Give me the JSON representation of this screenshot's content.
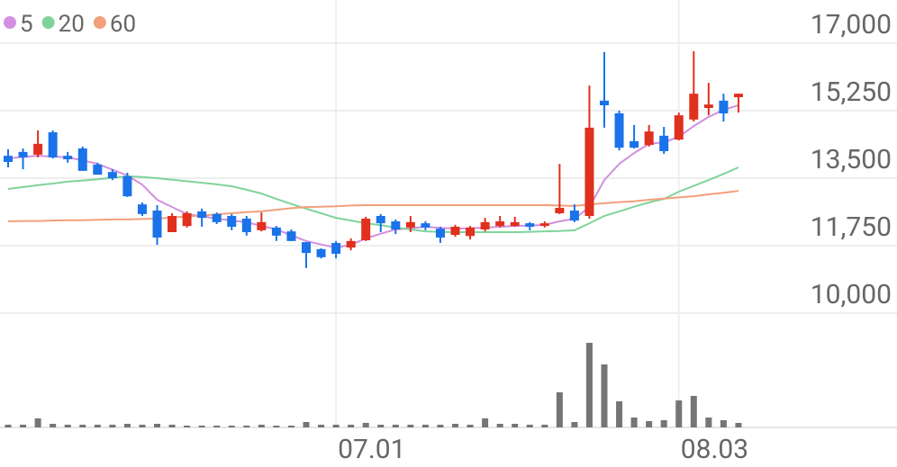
{
  "chart_data": {
    "type": "candlestick",
    "categories": [
      null,
      null,
      null,
      null,
      null,
      null,
      null,
      null,
      null,
      null,
      null,
      null,
      null,
      null,
      null,
      null,
      null,
      null,
      null,
      null,
      null,
      null,
      "07.01",
      null,
      null,
      null,
      null,
      null,
      null,
      null,
      null,
      null,
      null,
      null,
      null,
      null,
      null,
      null,
      null,
      null,
      null,
      null,
      null,
      null,
      null,
      "08.03",
      null,
      null,
      null,
      null
    ],
    "open": [
      14080,
      14180,
      14110,
      14690,
      14080,
      14270,
      13850,
      13660,
      13550,
      12820,
      12660,
      12100,
      12260,
      12640,
      12570,
      12520,
      12450,
      12150,
      12220,
      12120,
      11840,
      11660,
      11820,
      11700,
      11890,
      12520,
      12380,
      12220,
      12330,
      12190,
      12030,
      12000,
      12170,
      12260,
      12260,
      12330,
      12260,
      12590,
      12660,
      12520,
      15510,
      15180,
      14460,
      14360,
      14600,
      14500,
      15020,
      15320,
      15510,
      15600
    ],
    "high": [
      14250,
      14270,
      14740,
      14740,
      14180,
      14320,
      13900,
      13730,
      13640,
      12870,
      12800,
      12590,
      12640,
      12710,
      12610,
      12570,
      12520,
      12610,
      12260,
      12170,
      11840,
      11680,
      11870,
      11940,
      12500,
      12570,
      12430,
      12520,
      12380,
      12240,
      12290,
      12260,
      12470,
      12520,
      12500,
      12360,
      12380,
      13870,
      12820,
      15900,
      16770,
      15250,
      14880,
      14880,
      14830,
      15200,
      16790,
      15970,
      15690,
      15690
    ],
    "low": [
      13780,
      13730,
      14040,
      14010,
      13900,
      13690,
      13590,
      13450,
      13010,
      12520,
      11770,
      12100,
      12220,
      12240,
      12310,
      12150,
      12010,
      12120,
      11870,
      11870,
      11170,
      11420,
      11420,
      11630,
      11870,
      12100,
      12050,
      12100,
      12150,
      11820,
      11980,
      11910,
      12120,
      12220,
      12240,
      12150,
      12220,
      12570,
      12360,
      12450,
      14810,
      14220,
      14270,
      14320,
      14130,
      14480,
      14970,
      15130,
      14970,
      15200
    ],
    "close": [
      13920,
      14040,
      14390,
      14040,
      13990,
      13690,
      13590,
      13500,
      13030,
      12570,
      11960,
      12520,
      12590,
      12470,
      12360,
      12240,
      12100,
      12360,
      12010,
      11870,
      11560,
      11450,
      11540,
      11870,
      12450,
      12330,
      12170,
      12360,
      12220,
      11960,
      12240,
      12220,
      12360,
      12380,
      12360,
      12240,
      12330,
      12730,
      12400,
      14810,
      15390,
      14290,
      14290,
      14710,
      14200,
      15130,
      15690,
      15410,
      15180,
      15690
    ],
    "volume": [
      3000,
      3000,
      10000,
      4000,
      3000,
      3000,
      3000,
      3000,
      4000,
      3000,
      4000,
      3000,
      2000,
      2000,
      2000,
      2000,
      2000,
      3000,
      2000,
      2000,
      6000,
      3000,
      3000,
      3000,
      5000,
      3000,
      3000,
      3000,
      3000,
      3000,
      4000,
      3000,
      10000,
      4000,
      4000,
      3000,
      3000,
      39000,
      6000,
      94000,
      70000,
      29000,
      11000,
      7000,
      8000,
      30000,
      35000,
      11000,
      8000,
      5000
    ],
    "up_color": "#e0301e",
    "down_color": "#1a73e8",
    "volume_color": "#757575",
    "moving_averages": [
      {
        "name": "5",
        "color": "#d38fe0",
        "values": [
          14010,
          14050,
          14080,
          14060,
          14040,
          13960,
          13870,
          13720,
          13570,
          13330,
          12940,
          12750,
          12570,
          12510,
          12450,
          12400,
          12360,
          12260,
          12170,
          12020,
          11870,
          11780,
          11700,
          11770,
          11940,
          12060,
          12170,
          12200,
          12240,
          12210,
          12190,
          12200,
          12220,
          12240,
          12260,
          12270,
          12290,
          12380,
          12450,
          12750,
          13450,
          13870,
          14150,
          14390,
          14430,
          14570,
          14850,
          15090,
          15270,
          15390
        ]
      },
      {
        "name": "20",
        "color": "#7fd39a",
        "values": [
          13220,
          13270,
          13320,
          13360,
          13410,
          13440,
          13470,
          13510,
          13550,
          13530,
          13500,
          13460,
          13420,
          13380,
          13340,
          13290,
          13200,
          13100,
          12960,
          12830,
          12710,
          12590,
          12470,
          12400,
          12330,
          12280,
          12220,
          12170,
          12120,
          12110,
          12100,
          12100,
          12100,
          12100,
          12100,
          12110,
          12120,
          12130,
          12150,
          12330,
          12520,
          12640,
          12760,
          12870,
          12960,
          13150,
          13300,
          13450,
          13610,
          13780
        ]
      },
      {
        "name": "60",
        "color": "#f2a07c",
        "values": [
          12380,
          12390,
          12390,
          12400,
          12410,
          12410,
          12420,
          12430,
          12430,
          12440,
          12450,
          12480,
          12510,
          12530,
          12560,
          12590,
          12620,
          12640,
          12680,
          12720,
          12750,
          12760,
          12770,
          12790,
          12800,
          12800,
          12800,
          12800,
          12800,
          12800,
          12800,
          12800,
          12800,
          12800,
          12800,
          12800,
          12800,
          12790,
          12780,
          12820,
          12850,
          12880,
          12900,
          12940,
          12970,
          13000,
          13030,
          13080,
          13120,
          13170
        ]
      }
    ],
    "ylim": [
      10000,
      18120
    ],
    "yticks": [
      {
        "value": 17000,
        "label": "17,000"
      },
      {
        "value": 15250,
        "label": "15,250"
      },
      {
        "value": 13500,
        "label": "13,500"
      },
      {
        "value": 11750,
        "label": "11,750"
      },
      {
        "value": 10000,
        "label": "10,000"
      }
    ],
    "volume_ylim": [
      0,
      127000
    ],
    "grid": true
  }
}
